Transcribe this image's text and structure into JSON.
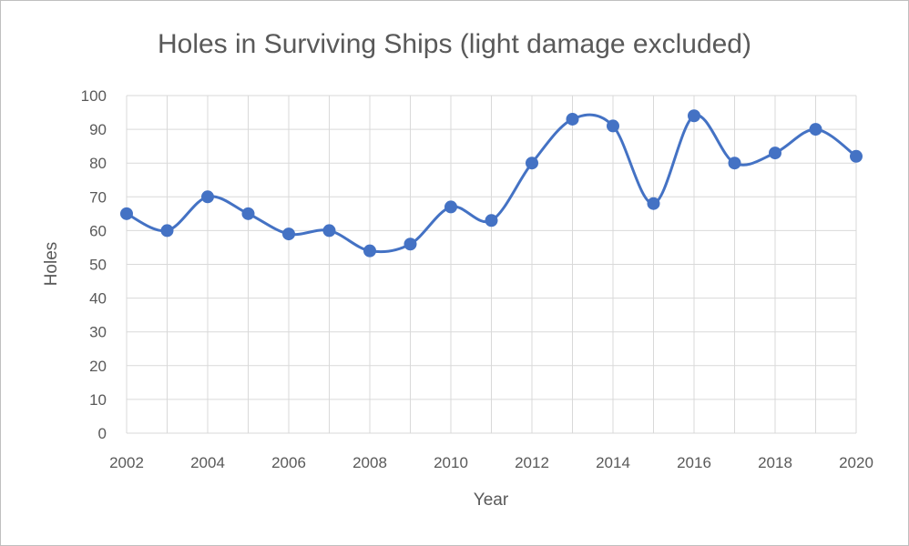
{
  "chart_data": {
    "type": "line",
    "title": "Holes in Surviving Ships (light damage excluded)",
    "xlabel": "Year",
    "ylabel": "Holes",
    "x": [
      2002,
      2003,
      2004,
      2005,
      2006,
      2007,
      2008,
      2009,
      2010,
      2011,
      2012,
      2013,
      2014,
      2015,
      2016,
      2017,
      2018,
      2019,
      2020
    ],
    "series": [
      {
        "values": [
          65,
          60,
          70,
          65,
          59,
          60,
          54,
          56,
          67,
          63,
          80,
          93,
          91,
          68,
          94,
          80,
          83,
          90,
          82
        ]
      }
    ],
    "xlim": [
      2002,
      2020
    ],
    "ylim": [
      0,
      100
    ],
    "x_ticks": [
      "2002",
      "2004",
      "2006",
      "2008",
      "2010",
      "2012",
      "2014",
      "2016",
      "2018",
      "2020"
    ],
    "y_ticks": [
      "0",
      "10",
      "20",
      "30",
      "40",
      "50",
      "60",
      "70",
      "80",
      "90",
      "100"
    ],
    "grid": true,
    "smooth": true,
    "markers": true,
    "legend": "none",
    "colors": {
      "series": "#4472c4",
      "grid": "#d9d9d9",
      "text": "#595959"
    }
  }
}
